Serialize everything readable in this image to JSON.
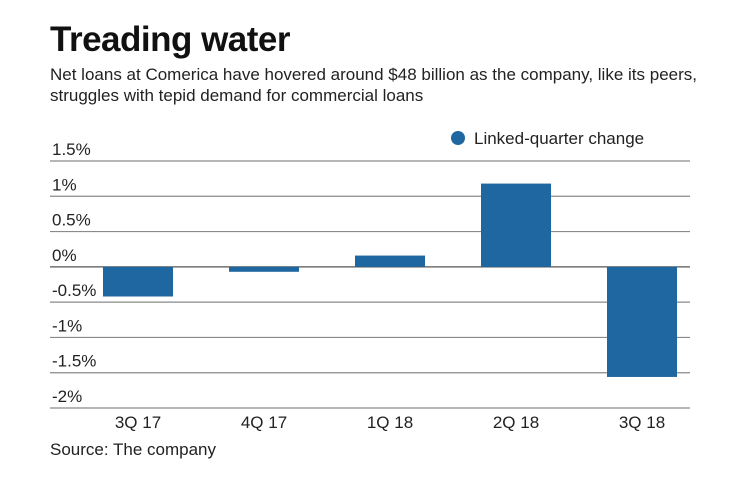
{
  "chart_data": {
    "type": "bar",
    "title": "Treading water",
    "subtitle": "Net loans at Comerica have hovered around $48 billion as the company, like its peers, struggles with tepid demand for commercial loans",
    "source": "Source: The company",
    "categories": [
      "3Q 17",
      "4Q 17",
      "1Q 18",
      "2Q 18",
      "3Q 18"
    ],
    "series": [
      {
        "name": "Linked-quarter change",
        "values": [
          -0.42,
          -0.07,
          0.16,
          1.18,
          -1.56
        ],
        "color": "#1f67a0"
      }
    ],
    "ylabel": "",
    "xlabel": "",
    "ylim": [
      -2,
      1.5
    ],
    "yticks": [
      1.5,
      1,
      0.5,
      0,
      -0.5,
      -1,
      -1.5,
      -2
    ],
    "ytick_labels": [
      "1.5%",
      "1%",
      "0.5%",
      "0%",
      "-0.5%",
      "-1%",
      "-1.5%",
      "-2%"
    ],
    "grid": true,
    "legend_position": "top-right"
  }
}
